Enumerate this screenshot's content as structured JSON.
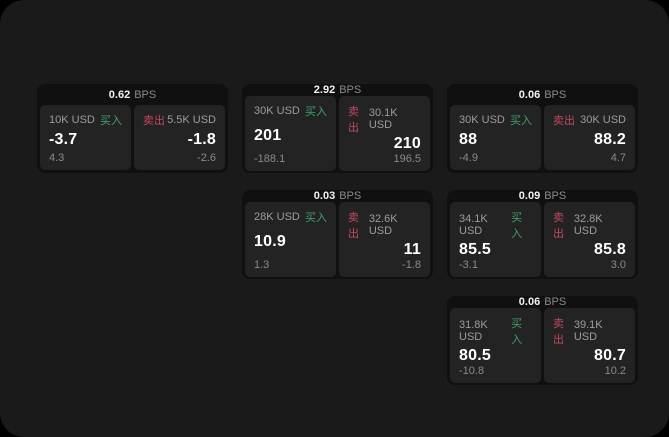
{
  "labels": {
    "bps_unit": "BPS",
    "buy": "买入",
    "sell": "卖出"
  },
  "colors": {
    "window_bg": "#1a1a1a",
    "card_bg": "#101010",
    "tile_bg": "#232323",
    "buy_green": "#3fa26b",
    "sell_red": "#c04a5e",
    "primary_text": "#ffffff",
    "secondary_text": "#8a8a8a"
  },
  "cards": [
    {
      "bps": "0.62",
      "buy": {
        "amount": "10K USD",
        "value": "-3.7",
        "delta": "4.3"
      },
      "sell": {
        "amount": "5.5K USD",
        "value": "-1.8",
        "delta": "-2.6"
      }
    },
    {
      "bps": "2.92",
      "buy": {
        "amount": "30K USD",
        "value": "201",
        "delta": "-188.1"
      },
      "sell": {
        "amount": "30.1K USD",
        "value": "210",
        "delta": "196.5"
      }
    },
    {
      "bps": "0.06",
      "buy": {
        "amount": "30K USD",
        "value": "88",
        "delta": "-4.9"
      },
      "sell": {
        "amount": "30K USD",
        "value": "88.2",
        "delta": "4.7"
      }
    },
    {
      "bps": "0.03",
      "buy": {
        "amount": "28K USD",
        "value": "10.9",
        "delta": "1.3"
      },
      "sell": {
        "amount": "32.6K USD",
        "value": "11",
        "delta": "-1.8"
      }
    },
    {
      "bps": "0.09",
      "buy": {
        "amount": "34.1K USD",
        "value": "85.5",
        "delta": "-3.1"
      },
      "sell": {
        "amount": "32.8K USD",
        "value": "85.8",
        "delta": "3.0"
      }
    },
    {
      "bps": "0.06",
      "buy": {
        "amount": "31.8K USD",
        "value": "80.5",
        "delta": "-10.8"
      },
      "sell": {
        "amount": "39.1K USD",
        "value": "80.7",
        "delta": "10.2"
      }
    }
  ]
}
